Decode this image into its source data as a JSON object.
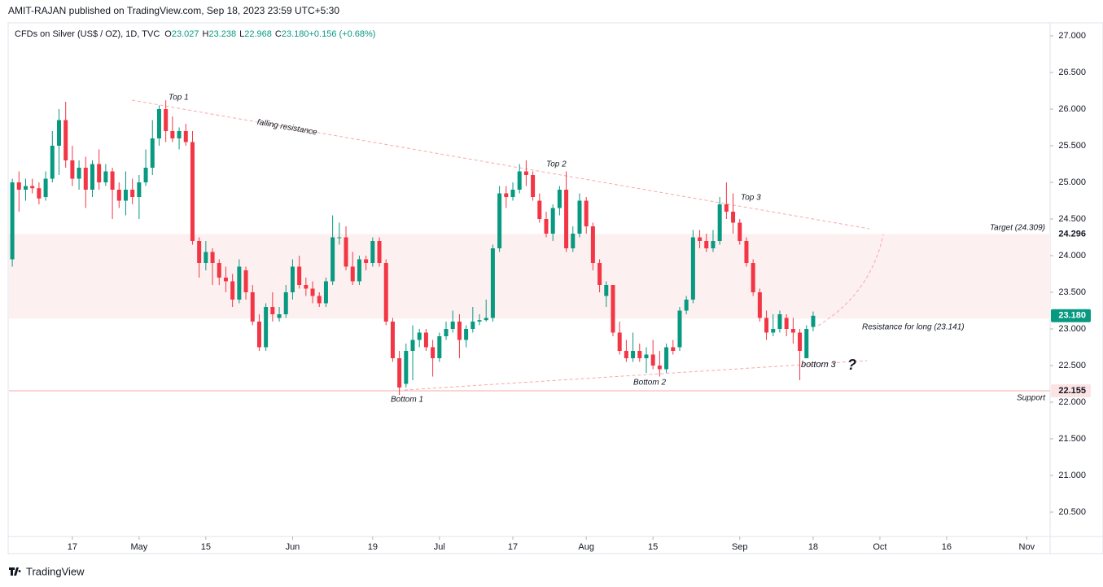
{
  "header": "AMIT-RAJAN published on TradingView.com, Sep 18, 2023 23:59 UTC+5:30",
  "legend": {
    "title": "CFDs on Silver (US$ / OZ), 1D, TVC",
    "items": [
      {
        "name": "O",
        "value": "23.027"
      },
      {
        "name": "H",
        "value": "23.238"
      },
      {
        "name": "L",
        "value": "22.968"
      },
      {
        "name": "C",
        "value": "23.180"
      },
      {
        "name": "",
        "value": "+0.156 (+0.68%)"
      }
    ]
  },
  "footer": "TradingView",
  "chart_data": {
    "type": "candlestick",
    "up_color": "#089981",
    "down_color": "#f23645",
    "candles": [
      [
        23.95,
        25.05,
        23.85,
        25.0
      ],
      [
        25.0,
        25.15,
        24.6,
        24.9
      ],
      [
        24.9,
        25.05,
        24.75,
        24.95
      ],
      [
        24.95,
        25.05,
        24.85,
        24.92
      ],
      [
        24.92,
        25.0,
        24.7,
        24.78
      ],
      [
        24.8,
        25.15,
        24.75,
        25.05
      ],
      [
        25.05,
        25.7,
        25.0,
        25.5
      ],
      [
        25.5,
        26.0,
        25.1,
        25.85
      ],
      [
        25.85,
        26.1,
        25.2,
        25.3
      ],
      [
        25.3,
        25.5,
        24.95,
        25.05
      ],
      [
        25.05,
        25.3,
        24.9,
        25.2
      ],
      [
        25.2,
        25.35,
        24.65,
        24.9
      ],
      [
        24.9,
        25.3,
        24.8,
        25.25
      ],
      [
        25.25,
        25.45,
        24.9,
        25.0
      ],
      [
        25.0,
        25.25,
        24.95,
        25.15
      ],
      [
        25.15,
        25.2,
        24.5,
        24.9
      ],
      [
        24.9,
        25.0,
        24.65,
        24.75
      ],
      [
        24.75,
        25.15,
        24.55,
        24.9
      ],
      [
        24.9,
        25.05,
        24.7,
        24.8
      ],
      [
        24.8,
        25.1,
        24.5,
        25.0
      ],
      [
        25.0,
        25.45,
        24.95,
        25.2
      ],
      [
        25.2,
        25.85,
        25.1,
        25.6
      ],
      [
        25.6,
        26.05,
        25.5,
        26.0
      ],
      [
        26.0,
        26.12,
        25.55,
        25.7
      ],
      [
        25.7,
        25.9,
        25.55,
        25.6
      ],
      [
        25.6,
        25.75,
        25.45,
        25.7
      ],
      [
        25.7,
        25.8,
        25.5,
        25.55
      ],
      [
        25.55,
        25.7,
        24.15,
        24.2
      ],
      [
        24.2,
        24.25,
        23.7,
        23.9
      ],
      [
        23.9,
        24.2,
        23.8,
        24.05
      ],
      [
        24.05,
        24.1,
        23.6,
        23.9
      ],
      [
        23.9,
        23.95,
        23.6,
        23.7
      ],
      [
        23.7,
        23.85,
        23.5,
        23.65
      ],
      [
        23.65,
        23.75,
        23.3,
        23.4
      ],
      [
        23.4,
        23.95,
        23.35,
        23.85
      ],
      [
        23.8,
        23.85,
        23.4,
        23.5
      ],
      [
        23.5,
        23.6,
        23.05,
        23.1
      ],
      [
        23.1,
        23.2,
        22.7,
        22.75
      ],
      [
        22.75,
        23.35,
        22.7,
        23.3
      ],
      [
        23.3,
        23.5,
        23.1,
        23.2
      ],
      [
        23.15,
        23.3,
        23.1,
        23.2
      ],
      [
        23.2,
        23.6,
        23.15,
        23.5
      ],
      [
        23.5,
        23.95,
        23.4,
        23.85
      ],
      [
        23.85,
        24.0,
        23.55,
        23.6
      ],
      [
        23.6,
        23.7,
        23.45,
        23.55
      ],
      [
        23.55,
        23.65,
        23.35,
        23.45
      ],
      [
        23.45,
        23.5,
        23.3,
        23.35
      ],
      [
        23.35,
        23.7,
        23.3,
        23.65
      ],
      [
        23.65,
        24.55,
        23.6,
        24.25
      ],
      [
        24.25,
        24.45,
        24.15,
        24.25
      ],
      [
        24.25,
        24.4,
        23.8,
        23.85
      ],
      [
        23.85,
        24.05,
        23.6,
        23.65
      ],
      [
        23.65,
        24.0,
        23.6,
        23.95
      ],
      [
        23.95,
        24.0,
        23.8,
        23.9
      ],
      [
        23.9,
        24.25,
        23.85,
        24.2
      ],
      [
        24.2,
        24.25,
        23.85,
        23.9
      ],
      [
        23.9,
        23.95,
        23.05,
        23.1
      ],
      [
        23.1,
        23.15,
        22.55,
        22.6
      ],
      [
        22.6,
        22.7,
        22.1,
        22.2
      ],
      [
        22.25,
        22.8,
        22.2,
        22.7
      ],
      [
        22.7,
        23.05,
        22.3,
        22.85
      ],
      [
        22.85,
        23.0,
        22.75,
        22.95
      ],
      [
        22.95,
        23.0,
        22.7,
        22.75
      ],
      [
        22.75,
        22.85,
        22.35,
        22.6
      ],
      [
        22.6,
        22.95,
        22.55,
        22.9
      ],
      [
        22.9,
        23.1,
        22.85,
        23.0
      ],
      [
        23.0,
        23.25,
        22.95,
        23.1
      ],
      [
        23.1,
        23.2,
        22.6,
        22.85
      ],
      [
        22.85,
        23.05,
        22.75,
        23.0
      ],
      [
        23.0,
        23.3,
        22.95,
        23.1
      ],
      [
        23.1,
        23.2,
        23.05,
        23.12
      ],
      [
        23.12,
        23.4,
        23.1,
        23.15
      ],
      [
        23.15,
        24.15,
        23.1,
        24.1
      ],
      [
        24.1,
        24.95,
        24.05,
        24.85
      ],
      [
        24.85,
        24.95,
        24.65,
        24.8
      ],
      [
        24.8,
        25.0,
        24.75,
        24.9
      ],
      [
        24.9,
        25.25,
        24.85,
        25.15
      ],
      [
        25.15,
        25.3,
        24.95,
        25.1
      ],
      [
        25.1,
        25.15,
        24.75,
        24.8
      ],
      [
        24.75,
        24.85,
        24.45,
        24.5
      ],
      [
        24.5,
        24.6,
        24.25,
        24.3
      ],
      [
        24.3,
        24.7,
        24.2,
        24.65
      ],
      [
        24.65,
        24.95,
        24.55,
        24.9
      ],
      [
        24.9,
        25.15,
        24.05,
        24.1
      ],
      [
        24.1,
        24.4,
        24.05,
        24.3
      ],
      [
        24.3,
        24.85,
        24.25,
        24.75
      ],
      [
        24.75,
        24.8,
        24.3,
        24.4
      ],
      [
        24.4,
        24.45,
        23.8,
        23.9
      ],
      [
        23.9,
        23.95,
        23.5,
        23.6
      ],
      [
        23.45,
        23.65,
        23.3,
        23.6
      ],
      [
        23.6,
        23.6,
        22.9,
        22.95
      ],
      [
        22.95,
        23.1,
        22.65,
        22.7
      ],
      [
        22.7,
        22.85,
        22.55,
        22.6
      ],
      [
        22.6,
        22.95,
        22.55,
        22.7
      ],
      [
        22.7,
        22.8,
        22.55,
        22.6
      ],
      [
        22.6,
        22.75,
        22.4,
        22.65
      ],
      [
        22.65,
        22.85,
        22.45,
        22.5
      ],
      [
        22.5,
        22.7,
        22.35,
        22.45
      ],
      [
        22.45,
        22.8,
        22.4,
        22.75
      ],
      [
        22.75,
        22.85,
        22.65,
        22.7
      ],
      [
        22.75,
        23.3,
        22.7,
        23.25
      ],
      [
        23.25,
        23.45,
        23.2,
        23.4
      ],
      [
        23.4,
        24.35,
        23.35,
        24.25
      ],
      [
        24.25,
        24.35,
        24.1,
        24.2
      ],
      [
        24.2,
        24.3,
        24.05,
        24.1
      ],
      [
        24.1,
        24.35,
        24.05,
        24.2
      ],
      [
        24.2,
        24.8,
        24.15,
        24.7
      ],
      [
        24.7,
        25.0,
        24.5,
        24.6
      ],
      [
        24.6,
        24.85,
        24.3,
        24.45
      ],
      [
        24.45,
        24.5,
        24.15,
        24.2
      ],
      [
        24.2,
        24.25,
        23.85,
        23.9
      ],
      [
        23.9,
        23.95,
        23.45,
        23.5
      ],
      [
        23.5,
        23.55,
        23.1,
        23.15
      ],
      [
        23.15,
        23.25,
        22.85,
        22.95
      ],
      [
        22.95,
        23.2,
        22.9,
        23.0
      ],
      [
        23.0,
        23.25,
        22.95,
        23.2
      ],
      [
        23.15,
        23.2,
        22.9,
        23.0
      ],
      [
        23.0,
        23.15,
        22.8,
        22.95
      ],
      [
        22.95,
        23.0,
        22.3,
        22.7
      ],
      [
        22.6,
        23.05,
        22.6,
        23.0
      ],
      [
        23.027,
        23.238,
        22.968,
        23.18
      ]
    ],
    "xlim": [
      -0.5,
      155.5
    ],
    "xticks": [
      {
        "value": 9,
        "label": "17"
      },
      {
        "value": 19,
        "label": "May"
      },
      {
        "value": 29,
        "label": "15"
      },
      {
        "value": 42,
        "label": "Jun"
      },
      {
        "value": 54,
        "label": "19"
      },
      {
        "value": 64,
        "label": "Jul"
      },
      {
        "value": 75,
        "label": "17"
      },
      {
        "value": 86,
        "label": "Aug"
      },
      {
        "value": 96,
        "label": "15"
      },
      {
        "value": 109,
        "label": "Sep"
      },
      {
        "value": 120,
        "label": "18"
      },
      {
        "value": 130,
        "label": "Oct"
      },
      {
        "value": 140,
        "label": "16"
      },
      {
        "value": 152,
        "label": "Nov"
      }
    ],
    "ylim": [
      20.2,
      27.2
    ],
    "yticks": [
      {
        "value": 20.5,
        "label": "20.500"
      },
      {
        "value": 21,
        "label": "21.000"
      },
      {
        "value": 21.5,
        "label": "21.500"
      },
      {
        "value": 22,
        "label": "22.000"
      },
      {
        "value": 22.5,
        "label": "22.500"
      },
      {
        "value": 23,
        "label": "23.000"
      },
      {
        "value": 23.5,
        "label": "23.500"
      },
      {
        "value": 24,
        "label": "24.000"
      },
      {
        "value": 24.5,
        "label": "24.500"
      },
      {
        "value": 25,
        "label": "25.000"
      },
      {
        "value": 25.5,
        "label": "25.500"
      },
      {
        "value": 26,
        "label": "26.000"
      },
      {
        "value": 26.5,
        "label": "26.500"
      },
      {
        "value": 27,
        "label": "27.000"
      }
    ],
    "zone": {
      "from": 23.141,
      "to": 24.296,
      "color": "#fdf0f0"
    },
    "support_line": {
      "value": 22.155,
      "color": "#f7a9a9"
    },
    "price_tags": [
      {
        "value": 24.296,
        "label": "24.296",
        "color": "#ffffff",
        "text_color": "#131722"
      },
      {
        "value": 23.18,
        "label": "23.180",
        "color": "#089981",
        "text_color": "#ffffff"
      },
      {
        "value": 22.155,
        "label": "22.155",
        "color": "#fce4e4",
        "text_color": "#131722"
      }
    ],
    "annotations": [
      "Top 1",
      "Top 2",
      "Top 3",
      "Bottom 1",
      "Bottom 2",
      "bottom 3",
      "?",
      "falling resistance",
      "Target (24.309)",
      "Resistance for long (23.141)",
      "Support"
    ]
  }
}
